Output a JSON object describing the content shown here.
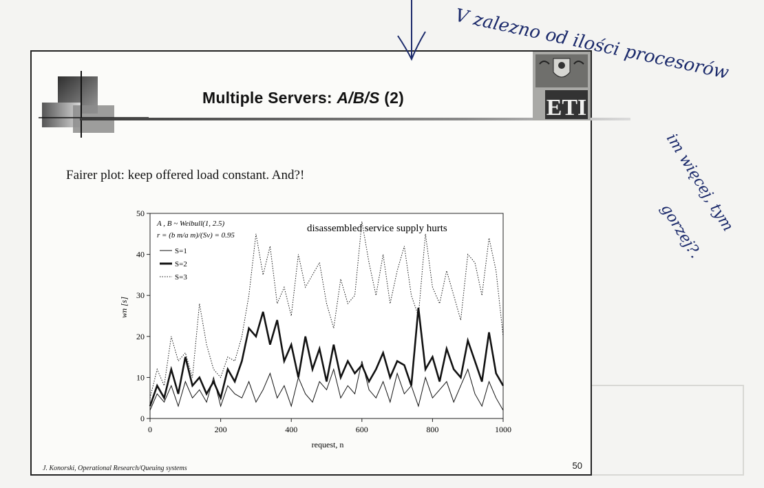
{
  "slide": {
    "title_main": "Multiple Servers: ",
    "title_italic": "A/B/S",
    "title_suffix": " (2)",
    "body_text": "Fairer plot: keep offered load constant. And?!",
    "footer": "J. Konorski, Operational Research/Queuing systems",
    "page_number": "50",
    "emblem_text": "ETI"
  },
  "handwriting": {
    "line1": "V zalezno od ilości procesorów",
    "line2": "im więcej, tym",
    "line3": "gorzej?."
  },
  "chart_data": {
    "type": "line",
    "title": "disassembled service supply hurts",
    "legend_line1": "A , B ~ Weibull(1, 2.5)",
    "legend_line2": "r = (b m/a m)/(Sv) = 0.95",
    "xlabel": "request, n",
    "ylabel": "wn [s]",
    "xlim": [
      0,
      1000
    ],
    "ylim": [
      0,
      50
    ],
    "xticks": [
      0,
      200,
      400,
      600,
      800,
      1000
    ],
    "yticks": [
      0,
      10,
      20,
      30,
      40,
      50
    ],
    "x": [
      0,
      20,
      40,
      60,
      80,
      100,
      120,
      140,
      160,
      180,
      200,
      220,
      240,
      260,
      280,
      300,
      320,
      340,
      360,
      380,
      400,
      420,
      440,
      460,
      480,
      500,
      520,
      540,
      560,
      580,
      600,
      620,
      640,
      660,
      680,
      700,
      720,
      740,
      760,
      780,
      800,
      820,
      840,
      860,
      880,
      900,
      920,
      940,
      960,
      980,
      1000
    ],
    "series": [
      {
        "name": "S=1",
        "style": "thin",
        "values": [
          2,
          6,
          4,
          8,
          3,
          9,
          5,
          7,
          4,
          10,
          3,
          8,
          6,
          5,
          9,
          4,
          7,
          11,
          5,
          8,
          3,
          10,
          6,
          4,
          9,
          7,
          12,
          5,
          8,
          6,
          14,
          7,
          5,
          9,
          4,
          11,
          6,
          8,
          3,
          10,
          5,
          7,
          9,
          4,
          8,
          12,
          6,
          3,
          9,
          5,
          2
        ]
      },
      {
        "name": "S=2",
        "style": "thick",
        "values": [
          3,
          8,
          5,
          12,
          6,
          15,
          8,
          10,
          6,
          9,
          5,
          12,
          9,
          14,
          22,
          20,
          26,
          18,
          24,
          14,
          18,
          10,
          20,
          12,
          17,
          9,
          18,
          10,
          14,
          11,
          13,
          9,
          12,
          16,
          10,
          14,
          13,
          8,
          27,
          12,
          15,
          9,
          17,
          12,
          10,
          19,
          14,
          9,
          21,
          11,
          8
        ]
      },
      {
        "name": "S=3",
        "style": "dotted",
        "values": [
          5,
          12,
          8,
          20,
          14,
          16,
          10,
          28,
          18,
          12,
          10,
          15,
          14,
          20,
          30,
          45,
          35,
          42,
          28,
          32,
          25,
          40,
          32,
          35,
          38,
          28,
          22,
          34,
          28,
          30,
          48,
          38,
          30,
          40,
          28,
          36,
          42,
          30,
          25,
          45,
          32,
          28,
          36,
          30,
          24,
          40,
          38,
          30,
          44,
          36,
          20
        ]
      }
    ]
  }
}
